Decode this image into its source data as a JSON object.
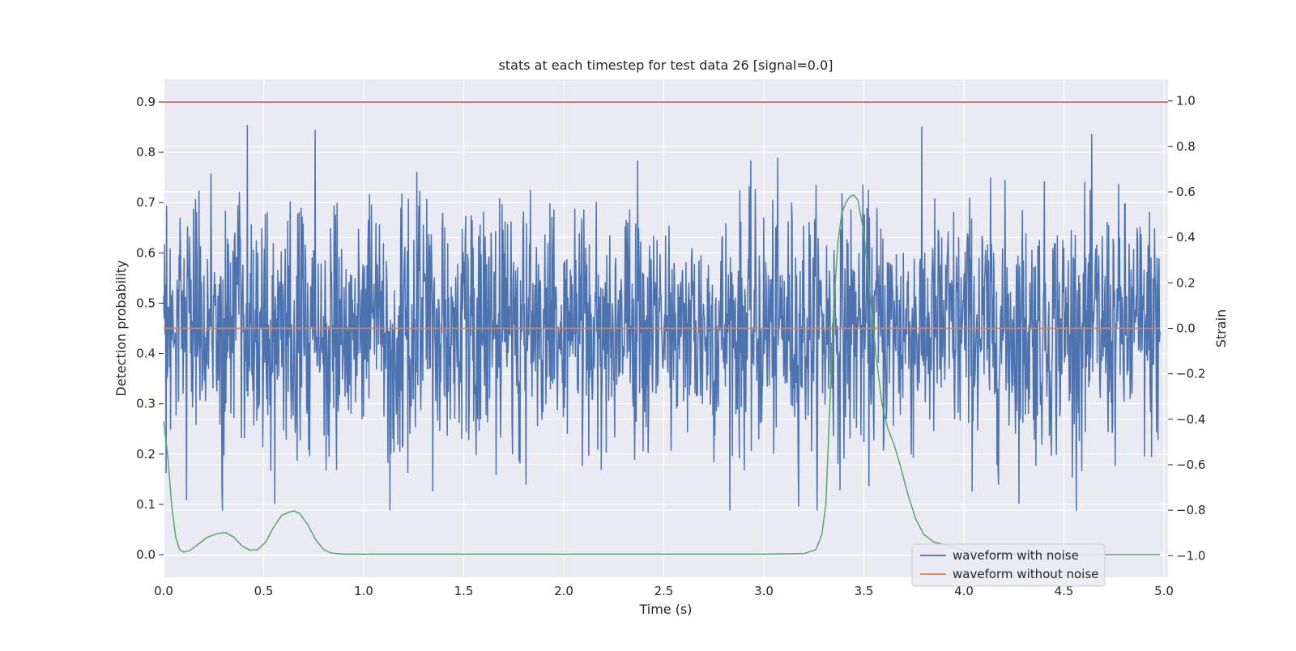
{
  "chart_data": {
    "type": "line",
    "title": "stats at each timestep for test data 26 [signal=0.0]",
    "xlabel": "Time (s)",
    "ylabel_left": "Detection probability",
    "ylabel_right": "Strain",
    "xlim": [
      0.0,
      5.02
    ],
    "ylim_left": [
      -0.045,
      0.945
    ],
    "ylim_right": [
      -1.095,
      1.095
    ],
    "x_ticks": [
      "0.0",
      "0.5",
      "1.0",
      "1.5",
      "2.0",
      "2.5",
      "3.0",
      "3.5",
      "4.0",
      "4.5",
      "5.0"
    ],
    "y_ticks_left": [
      "0.0",
      "0.1",
      "0.2",
      "0.3",
      "0.4",
      "0.5",
      "0.6",
      "0.7",
      "0.8",
      "0.9"
    ],
    "y_ticks_right": [
      "−1.0",
      "−0.8",
      "−0.6",
      "−0.4",
      "−0.2",
      "0.0",
      "0.2",
      "0.4",
      "0.6",
      "0.8",
      "1.0"
    ],
    "grid": true,
    "legend_position": "lower-right",
    "colors": {
      "noisy": "#4c72b0",
      "clean": "#dd8452",
      "probability": "#55a868",
      "threshold": "#c44e52",
      "background": "#eaeaf2",
      "grid": "#ffffff"
    },
    "series": [
      {
        "name": "waveform with noise",
        "axis": "right",
        "x_range": [
          0.0,
          4.98
        ],
        "sample_count": 2000,
        "envelope_max": 0.9,
        "envelope_min": -0.8
      },
      {
        "name": "waveform without noise",
        "axis": "right",
        "x": [
          0.0,
          4.98
        ],
        "y": [
          0.0,
          0.0
        ]
      },
      {
        "axis": "left",
        "x": [
          0.0,
          0.02,
          0.04,
          0.06,
          0.08,
          0.1,
          0.13,
          0.17,
          0.22,
          0.27,
          0.31,
          0.35,
          0.39,
          0.43,
          0.47,
          0.51,
          0.55,
          0.59,
          0.63,
          0.65,
          0.68,
          0.72,
          0.76,
          0.8,
          0.84,
          0.9,
          1.0,
          1.5,
          2.0,
          2.5,
          3.0,
          3.2,
          3.26,
          3.29,
          3.31,
          3.33,
          3.35,
          3.37,
          3.39,
          3.41,
          3.43,
          3.45,
          3.47,
          3.5,
          3.53,
          3.56,
          3.59,
          3.62,
          3.65,
          3.68,
          3.72,
          3.76,
          3.8,
          3.85,
          3.9,
          3.95,
          4.0,
          4.1,
          4.5,
          4.98
        ],
        "y": [
          0.265,
          0.2,
          0.1,
          0.035,
          0.01,
          0.005,
          0.008,
          0.02,
          0.035,
          0.042,
          0.044,
          0.035,
          0.018,
          0.009,
          0.01,
          0.025,
          0.055,
          0.078,
          0.085,
          0.087,
          0.082,
          0.06,
          0.03,
          0.01,
          0.003,
          0.001,
          0.001,
          0.001,
          0.001,
          0.001,
          0.001,
          0.002,
          0.01,
          0.04,
          0.1,
          0.3,
          0.5,
          0.62,
          0.68,
          0.7,
          0.712,
          0.715,
          0.705,
          0.64,
          0.52,
          0.4,
          0.3,
          0.25,
          0.22,
          0.18,
          0.12,
          0.07,
          0.04,
          0.025,
          0.02,
          0.015,
          0.008,
          0.002,
          0.0,
          0.0
        ]
      },
      {
        "axis": "left",
        "x": [
          0.0,
          5.02
        ],
        "y": [
          0.9,
          0.9
        ]
      }
    ]
  }
}
